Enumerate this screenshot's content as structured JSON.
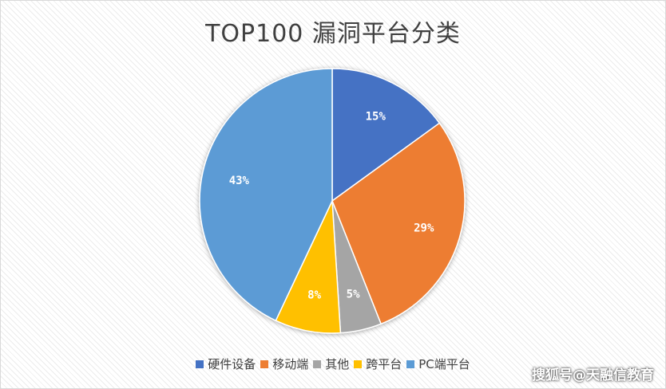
{
  "chart_data": {
    "type": "pie",
    "title": "TOP100 漏洞平台分类",
    "categories": [
      "硬件设备",
      "移动端",
      "其他",
      "跨平台",
      "PC端平台"
    ],
    "values": [
      15,
      29,
      5,
      8,
      43
    ],
    "labels": [
      "15%",
      "29%",
      "5%",
      "8%",
      "43%"
    ],
    "colors": [
      "#4472c4",
      "#ed7d31",
      "#a5a5a5",
      "#ffc000",
      "#5b9bd5"
    ],
    "legend_position": "bottom",
    "start_angle": "12 o'clock, clockwise"
  },
  "watermark": "搜狐号@天融信教育"
}
